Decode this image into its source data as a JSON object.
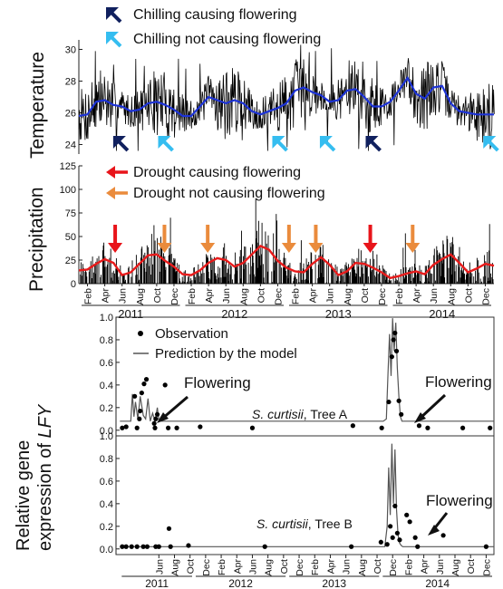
{
  "figure": {
    "temp_ylabel": "Temperature",
    "precip_ylabel": "Precipitation",
    "gene_ylabel_line1": "Relative gene",
    "gene_ylabel_line2_prefix": "expression of ",
    "gene_ylabel_line2_gene": "LFY"
  },
  "chart_data": [
    {
      "id": "temperature",
      "type": "line",
      "ylabel": "Temperature",
      "ylim": [
        23.4,
        30.6
      ],
      "yticks": [
        24,
        26,
        28,
        30
      ],
      "xlim_month_index": [
        0,
        48
      ],
      "series": [
        {
          "color": "#000000",
          "kind": "daily",
          "note": "noisy daily temperature around moving mean"
        },
        {
          "color": "#1d33d6",
          "kind": "smoothed",
          "x_month": [
            0,
            1,
            2,
            3,
            4,
            5,
            6,
            7,
            8,
            9,
            10,
            11,
            12,
            13,
            14,
            15,
            16,
            17,
            18,
            19,
            20,
            21,
            22,
            23,
            24,
            25,
            26,
            27,
            28,
            29,
            30,
            31,
            32,
            33,
            34,
            35,
            36,
            37,
            38,
            39,
            40,
            41,
            42,
            43,
            44,
            45,
            46,
            47,
            48
          ],
          "y": [
            25.8,
            25.9,
            26.7,
            26.8,
            26.5,
            26.4,
            26.1,
            26.2,
            26.6,
            26.7,
            26.5,
            26.2,
            25.8,
            25.8,
            26.4,
            27.0,
            26.8,
            26.6,
            26.8,
            26.6,
            26.1,
            25.9,
            26.1,
            26.3,
            26.6,
            27.4,
            27.6,
            27.3,
            27.1,
            26.7,
            26.8,
            27.4,
            27.5,
            27.0,
            26.4,
            26.4,
            26.7,
            27.4,
            28.2,
            27.2,
            26.9,
            27.6,
            27.7,
            26.6,
            26.1,
            26.0,
            25.9,
            25.9,
            25.9
          ]
        }
      ],
      "arrows": [
        {
          "x_month": 4.6,
          "kind": "chill_flower"
        },
        {
          "x_month": 9.8,
          "kind": "chill_noflower"
        },
        {
          "x_month": 23.0,
          "kind": "chill_noflower"
        },
        {
          "x_month": 28.5,
          "kind": "chill_noflower"
        },
        {
          "x_month": 33.8,
          "kind": "chill_flower"
        },
        {
          "x_month": 47.4,
          "kind": "chill_noflower"
        }
      ],
      "legend": [
        {
          "key": "chill_flower",
          "label": "Chilling causing flowering",
          "color": "#10205e"
        },
        {
          "key": "chill_noflower",
          "label": "Chilling not causing flowering",
          "color": "#35bdf0"
        }
      ]
    },
    {
      "id": "precipitation",
      "type": "line",
      "ylabel": "Precipitation",
      "ylim": [
        0,
        125
      ],
      "yticks": [
        0,
        25,
        50,
        75,
        100,
        125
      ],
      "xlim_month_index": [
        0,
        48
      ],
      "series": [
        {
          "color": "#000000",
          "kind": "daily",
          "note": "daily precipitation bars"
        },
        {
          "color": "#e81b1b",
          "kind": "smoothed",
          "x_month": [
            0,
            1,
            2,
            3,
            4,
            5,
            6,
            7,
            8,
            9,
            10,
            11,
            12,
            13,
            14,
            15,
            16,
            17,
            18,
            19,
            20,
            21,
            22,
            23,
            24,
            25,
            26,
            27,
            28,
            29,
            30,
            31,
            32,
            33,
            34,
            35,
            36,
            37,
            38,
            39,
            40,
            41,
            42,
            43,
            44,
            45,
            46,
            47,
            48
          ],
          "y": [
            14,
            15,
            21,
            26,
            22,
            9,
            12,
            21,
            30,
            31,
            24,
            18,
            10,
            9,
            14,
            22,
            27,
            25,
            18,
            22,
            31,
            40,
            36,
            24,
            17,
            13,
            12,
            21,
            28,
            20,
            9,
            13,
            22,
            21,
            17,
            12,
            6,
            8,
            11,
            13,
            10,
            20,
            26,
            31,
            22,
            12,
            16,
            21,
            19
          ]
        }
      ],
      "arrows": [
        {
          "x_month": 4.2,
          "kind": "drought_flower"
        },
        {
          "x_month": 9.9,
          "kind": "drought_noflower"
        },
        {
          "x_month": 14.9,
          "kind": "drought_noflower"
        },
        {
          "x_month": 24.3,
          "kind": "drought_noflower"
        },
        {
          "x_month": 27.4,
          "kind": "drought_noflower"
        },
        {
          "x_month": 33.7,
          "kind": "drought_flower"
        },
        {
          "x_month": 38.6,
          "kind": "drought_noflower"
        }
      ],
      "legend": [
        {
          "key": "drought_flower",
          "label": "Drought causing flowering",
          "color": "#e8141a"
        },
        {
          "key": "drought_noflower",
          "label": "Drought not causing flowering",
          "color": "#ea8b3c"
        }
      ],
      "xtick_labels": [
        "Feb",
        "Apr",
        "Jun",
        "Aug",
        "Oct",
        "Dec",
        "Feb",
        "Apr",
        "Jun",
        "Aug",
        "Oct",
        "Dec",
        "Feb",
        "Apr",
        "Jun",
        "Aug",
        "Oct",
        "Dec",
        "Feb",
        "Apr",
        "Jun",
        "Aug",
        "Oct",
        "Dec"
      ],
      "years": [
        "2011",
        "2012",
        "2013",
        "2014"
      ]
    },
    {
      "id": "gene_tree_a",
      "type": "scatter",
      "ylabel": "Relative gene expression of LFY",
      "ylim": [
        -0.05,
        1.0
      ],
      "yticks": [
        0.0,
        0.2,
        0.4,
        0.6,
        0.8,
        1.0
      ],
      "ytick_labels": [
        "0.0",
        "0.2",
        "0.4",
        "0.6",
        "0.8",
        "1.0"
      ],
      "xlim_month_index": [
        -0.5,
        48
      ],
      "annotation_flowering": "Flowering",
      "tree_label_species": "S. curtisii",
      "tree_label_tree": ", Tree A",
      "legend_observation": "Observation",
      "legend_prediction": "Prediction by the model",
      "observations": [
        {
          "x": 0.3,
          "y": 0.02
        },
        {
          "x": 0.8,
          "y": 0.03
        },
        {
          "x": 1.9,
          "y": 0.3
        },
        {
          "x": 2.2,
          "y": 0.02
        },
        {
          "x": 2.5,
          "y": 0.1
        },
        {
          "x": 2.6,
          "y": 0.17
        },
        {
          "x": 2.8,
          "y": 0.33
        },
        {
          "x": 3.1,
          "y": 0.41
        },
        {
          "x": 3.4,
          "y": 0.45
        },
        {
          "x": 4.4,
          "y": 0.06
        },
        {
          "x": 4.6,
          "y": 0.1
        },
        {
          "x": 4.8,
          "y": 0.14
        },
        {
          "x": 4.5,
          "y": 0.02
        },
        {
          "x": 5.8,
          "y": 0.4
        },
        {
          "x": 6.2,
          "y": 0.02
        },
        {
          "x": 7.3,
          "y": 0.02
        },
        {
          "x": 10.3,
          "y": 0.03
        },
        {
          "x": 17.0,
          "y": 0.02
        },
        {
          "x": 29.9,
          "y": 0.04
        },
        {
          "x": 33.6,
          "y": 0.02
        },
        {
          "x": 34.5,
          "y": 0.25
        },
        {
          "x": 34.9,
          "y": 0.65
        },
        {
          "x": 35.1,
          "y": 0.8
        },
        {
          "x": 35.3,
          "y": 0.86
        },
        {
          "x": 35.5,
          "y": 0.7
        },
        {
          "x": 35.8,
          "y": 0.26
        },
        {
          "x": 36.1,
          "y": 0.14
        },
        {
          "x": 38.4,
          "y": 0.04
        },
        {
          "x": 39.5,
          "y": 0.02
        },
        {
          "x": 44.0,
          "y": 0.02
        },
        {
          "x": 47.5,
          "y": 0.02
        }
      ],
      "prediction": {
        "x": [
          0.0,
          1.4,
          1.6,
          1.8,
          2.0,
          2.3,
          2.6,
          3.0,
          3.3,
          3.6,
          3.9,
          4.2,
          4.5,
          4.8,
          5.0,
          5.3,
          33.8,
          34.2,
          34.4,
          34.6,
          34.8,
          35.0,
          35.2,
          35.4,
          35.6,
          35.8,
          36.0,
          36.2,
          48.0
        ],
        "y": [
          0.08,
          0.08,
          0.32,
          0.12,
          0.25,
          0.1,
          0.3,
          0.13,
          0.1,
          0.28,
          0.08,
          0.15,
          0.08,
          0.2,
          0.09,
          0.08,
          0.08,
          0.1,
          0.5,
          0.85,
          0.48,
          0.99,
          0.7,
          0.95,
          0.55,
          0.3,
          0.12,
          0.08,
          0.08
        ]
      }
    },
    {
      "id": "gene_tree_b",
      "type": "scatter",
      "ylim": [
        -0.05,
        1.0
      ],
      "yticks": [
        0.0,
        0.2,
        0.4,
        0.6,
        0.8,
        1.0
      ],
      "ytick_labels": [
        "0.0",
        "0.2",
        "0.4",
        "0.6",
        "0.8",
        "1.0"
      ],
      "xlim_month_index": [
        -0.5,
        48
      ],
      "annotation_flowering": "Flowering",
      "tree_label_species": "S. curtisii",
      "tree_label_tree": ", Tree B",
      "observations": [
        {
          "x": 0.3,
          "y": 0.02
        },
        {
          "x": 0.8,
          "y": 0.02
        },
        {
          "x": 1.5,
          "y": 0.02
        },
        {
          "x": 2.2,
          "y": 0.02
        },
        {
          "x": 3.0,
          "y": 0.02
        },
        {
          "x": 3.5,
          "y": 0.02
        },
        {
          "x": 4.6,
          "y": 0.02
        },
        {
          "x": 5.0,
          "y": 0.02
        },
        {
          "x": 6.3,
          "y": 0.18
        },
        {
          "x": 6.5,
          "y": 0.02
        },
        {
          "x": 8.8,
          "y": 0.03
        },
        {
          "x": 18.6,
          "y": 0.02
        },
        {
          "x": 29.7,
          "y": 0.02
        },
        {
          "x": 33.5,
          "y": 0.06
        },
        {
          "x": 34.3,
          "y": 0.04
        },
        {
          "x": 34.7,
          "y": 0.2
        },
        {
          "x": 35.0,
          "y": 0.1
        },
        {
          "x": 35.3,
          "y": 0.38
        },
        {
          "x": 35.6,
          "y": 0.14
        },
        {
          "x": 35.9,
          "y": 0.08
        },
        {
          "x": 36.8,
          "y": 0.3
        },
        {
          "x": 37.2,
          "y": 0.24
        },
        {
          "x": 37.9,
          "y": 0.1
        },
        {
          "x": 38.2,
          "y": 0.02
        },
        {
          "x": 41.5,
          "y": 0.12
        },
        {
          "x": 47.0,
          "y": 0.02
        }
      ],
      "prediction": {
        "x": [
          0.0,
          34.0,
          34.3,
          34.5,
          34.7,
          34.9,
          35.1,
          35.3,
          35.5,
          35.7,
          35.9,
          36.1,
          36.3,
          48.0
        ],
        "y": [
          0.02,
          0.02,
          0.2,
          0.72,
          0.3,
          0.93,
          0.4,
          0.88,
          0.35,
          0.12,
          0.05,
          0.03,
          0.02,
          0.02
        ]
      },
      "xtick_labels": [
        "Jun",
        "Aug",
        "Oct",
        "Dec",
        "Feb",
        "Apr",
        "Jun",
        "Aug",
        "Oct",
        "Dec",
        "Feb",
        "Apr",
        "Jun",
        "Aug",
        "Oct",
        "Dec",
        "Feb",
        "Apr",
        "Jun",
        "Aug",
        "Oct",
        "Dec"
      ],
      "years": [
        "2011",
        "2012",
        "2013",
        "2014"
      ]
    }
  ]
}
